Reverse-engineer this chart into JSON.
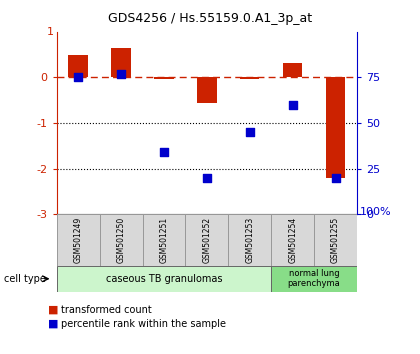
{
  "title": "GDS4256 / Hs.55159.0.A1_3p_at",
  "samples": [
    "GSM501249",
    "GSM501250",
    "GSM501251",
    "GSM501252",
    "GSM501253",
    "GSM501254",
    "GSM501255"
  ],
  "transformed_count": [
    0.5,
    0.65,
    -0.03,
    -0.55,
    -0.03,
    0.32,
    -2.2
  ],
  "percentile_rank": [
    75,
    77,
    34,
    20,
    45,
    60,
    20
  ],
  "ylim_left": [
    -3,
    1
  ],
  "ylim_right": [
    0,
    100
  ],
  "yticks_left": [
    0,
    -1,
    -2,
    -3
  ],
  "ytick_labels_left": [
    "0",
    "-1",
    "-2",
    "-3"
  ],
  "ytick_top_left": 1,
  "yticks_right": [
    75,
    50,
    25,
    0
  ],
  "ytick_labels_right": [
    "75",
    "50",
    "25",
    "0"
  ],
  "ytick_top_right_label": "100%",
  "hline_y": 0,
  "dotted_lines": [
    -1,
    -2
  ],
  "bar_color": "#cc2200",
  "dot_color": "#0000cc",
  "bar_width": 0.45,
  "ct_group1_label": "caseous TB granulomas",
  "ct_group1_count": 5,
  "ct_group1_color": "#ccf5cc",
  "ct_group2_label": "normal lung\nparenchyma",
  "ct_group2_count": 2,
  "ct_group2_color": "#88dd88",
  "legend_bar_label": "transformed count",
  "legend_dot_label": "percentile rank within the sample",
  "cell_type_label": "cell type",
  "bg_color": "#ffffff",
  "label_color_left": "#cc2200",
  "label_color_right": "#0000cc",
  "sample_box_color": "#d8d8d8",
  "sample_box_edge": "#999999"
}
